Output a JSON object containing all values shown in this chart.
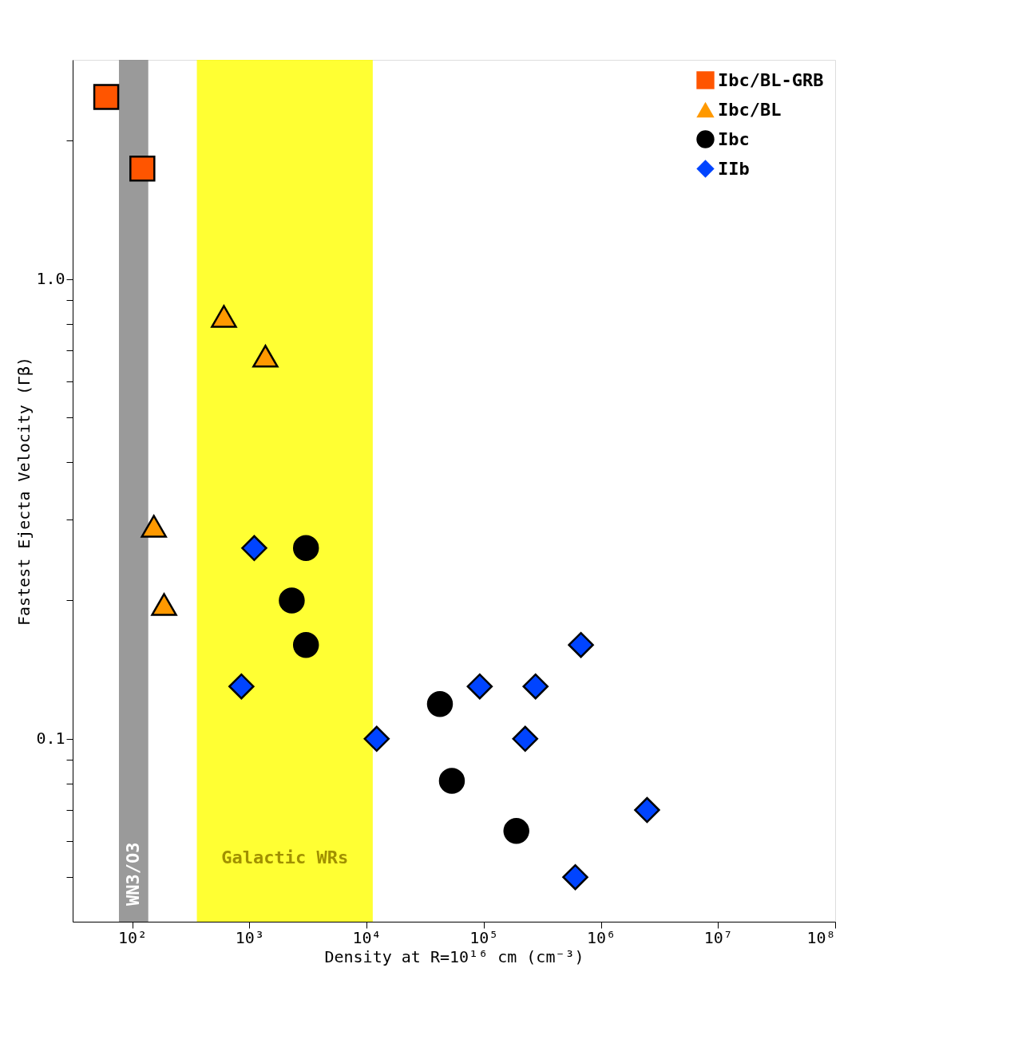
{
  "chart_data": {
    "type": "scatter",
    "xlabel": "Density at R=10¹⁶ cm (cm⁻³)",
    "ylabel": "Fastest Ejecta Velocity (Γβ)",
    "log": "xy",
    "legend": "top right",
    "grid": false,
    "xlim": [
      31,
      100000000
    ],
    "ylim": [
      0.04,
      3.0
    ],
    "xticks": [
      {
        "value": 100,
        "label": "10²"
      },
      {
        "value": 1000,
        "label": "10³"
      },
      {
        "value": 10000,
        "label": "10⁴"
      },
      {
        "value": 100000,
        "label": "10⁵"
      },
      {
        "value": 1000000,
        "label": "10⁶"
      },
      {
        "value": 10000000,
        "label": "10⁷"
      },
      {
        "value": 100000000,
        "label": "10⁸"
      }
    ],
    "yticks": [
      {
        "value": 0.05,
        "label": null
      },
      {
        "value": 0.06,
        "label": null
      },
      {
        "value": 0.07,
        "label": null
      },
      {
        "value": 0.08,
        "label": null
      },
      {
        "value": 0.09,
        "label": null
      },
      {
        "value": 0.1,
        "label": "0.1"
      },
      {
        "value": 0.2,
        "label": null
      },
      {
        "value": 0.3,
        "label": null
      },
      {
        "value": 0.4,
        "label": null
      },
      {
        "value": 0.5,
        "label": null
      },
      {
        "value": 0.6,
        "label": null
      },
      {
        "value": 0.7,
        "label": null
      },
      {
        "value": 0.8,
        "label": null
      },
      {
        "value": 0.9,
        "label": null
      },
      {
        "value": 1,
        "label": "1.0"
      },
      {
        "value": 2,
        "label": null
      }
    ],
    "series": [
      {
        "name": "Ibc/BL-GRB",
        "color": "#ff5500",
        "marker": "square",
        "x": [
          60,
          122
        ],
        "values": [
          2.49,
          1.74
        ]
      },
      {
        "name": "Ibc/BL",
        "color": "#ff9900",
        "marker": "triangle",
        "x": [
          153,
          187,
          606,
          1370
        ],
        "values": [
          0.29,
          0.196,
          0.83,
          0.68
        ]
      },
      {
        "name": "Ibc",
        "color": "#000000",
        "marker": "circle",
        "x": [
          42300,
          53500,
          190000,
          3040,
          2300,
          3040
        ],
        "values": [
          0.119,
          0.081,
          0.063,
          0.26,
          0.2,
          0.16
        ]
      },
      {
        "name": "IIb",
        "color": "#0044ff",
        "marker": "diamond",
        "x": [
          12200,
          92500,
          277000,
          226000,
          676000,
          2480000,
          605000,
          1100,
          855
        ],
        "values": [
          0.1,
          0.13,
          0.13,
          0.1,
          0.16,
          0.07,
          0.05,
          0.26,
          0.13
        ]
      }
    ],
    "bands": [
      {
        "axis": "x",
        "from": 77,
        "to": 137,
        "label": "WN3/O3",
        "color": "#888888"
      },
      {
        "axis": "x",
        "from": 356,
        "to": 11300,
        "label": "Galactic WRs",
        "color": "#ffff00"
      }
    ]
  }
}
